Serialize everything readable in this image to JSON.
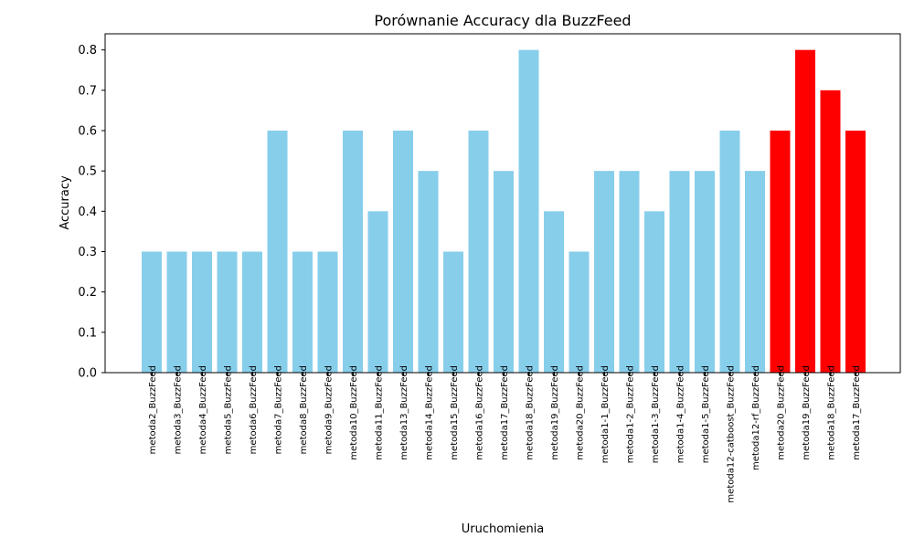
{
  "chart_data": {
    "type": "bar",
    "title": "Porównanie Accuracy dla BuzzFeed",
    "xlabel": "Uruchomienia",
    "ylabel": "Accuracy",
    "ylim": [
      0,
      0.84
    ],
    "yticks": [
      "0.0",
      "0.1",
      "0.2",
      "0.3",
      "0.4",
      "0.5",
      "0.6",
      "0.7",
      "0.8"
    ],
    "grid": false,
    "categories": [
      "metoda2_BuzzFeed",
      "metoda3_BuzzFeed",
      "metoda4_BuzzFeed",
      "metoda5_BuzzFeed",
      "metoda6_BuzzFeed",
      "metoda7_BuzzFeed",
      "metoda8_BuzzFeed",
      "metoda9_BuzzFeed",
      "metoda10_BuzzFeed",
      "metoda11_BuzzFeed",
      "metoda13_BuzzFeed",
      "metoda14_BuzzFeed",
      "metoda15_BuzzFeed",
      "metoda16_BuzzFeed",
      "metoda17_BuzzFeed",
      "metoda18_BuzzFeed",
      "metoda19_BuzzFeed",
      "metoda20_BuzzFeed",
      "metoda1-1_BuzzFeed",
      "metoda1-2_BuzzFeed",
      "metoda1-3_BuzzFeed",
      "metoda1-4_BuzzFeed",
      "metoda1-5_BuzzFeed",
      "metoda12-catboost_BuzzFeed",
      "metoda12-rf_BuzzFeed",
      "metoda20_BuzzFeed",
      "metoda19_BuzzFeed",
      "metoda18_BuzzFeed",
      "metoda17_BuzzFeed"
    ],
    "values": [
      0.3,
      0.3,
      0.3,
      0.3,
      0.3,
      0.6,
      0.3,
      0.3,
      0.6,
      0.4,
      0.6,
      0.5,
      0.3,
      0.6,
      0.5,
      0.8,
      0.4,
      0.3,
      0.5,
      0.5,
      0.4,
      0.5,
      0.5,
      0.6,
      0.5,
      0.6,
      0.8,
      0.7,
      0.6
    ],
    "bar_colors": [
      "#87CEEB",
      "#87CEEB",
      "#87CEEB",
      "#87CEEB",
      "#87CEEB",
      "#87CEEB",
      "#87CEEB",
      "#87CEEB",
      "#87CEEB",
      "#87CEEB",
      "#87CEEB",
      "#87CEEB",
      "#87CEEB",
      "#87CEEB",
      "#87CEEB",
      "#87CEEB",
      "#87CEEB",
      "#87CEEB",
      "#87CEEB",
      "#87CEEB",
      "#87CEEB",
      "#87CEEB",
      "#87CEEB",
      "#87CEEB",
      "#87CEEB",
      "#FF0000",
      "#FF0000",
      "#FF0000",
      "#FF0000"
    ]
  }
}
